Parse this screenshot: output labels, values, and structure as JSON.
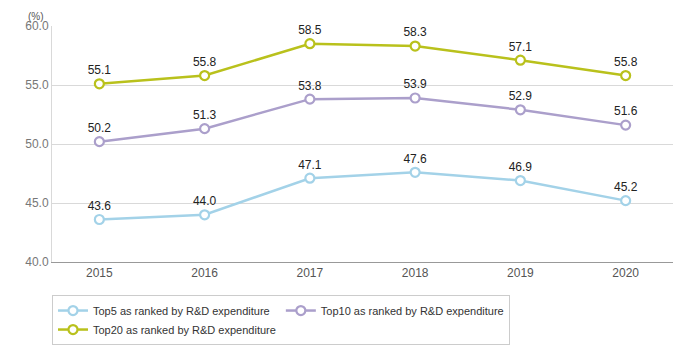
{
  "chart_data": {
    "type": "line",
    "ylabel": "(%)",
    "categories": [
      "2015",
      "2016",
      "2017",
      "2018",
      "2019",
      "2020"
    ],
    "series": [
      {
        "name": "Top5 as ranked by R&D expenditure",
        "color": "#a3d2e8",
        "values": [
          43.6,
          44.0,
          47.1,
          47.6,
          46.9,
          45.2
        ],
        "value_labels": [
          "43.6",
          "44.0",
          "47.1",
          "47.6",
          "46.9",
          "45.2"
        ]
      },
      {
        "name": "Top10 as ranked by R&D expenditure",
        "color": "#ab9fcb",
        "values": [
          50.2,
          51.3,
          53.8,
          53.9,
          52.9,
          51.6
        ],
        "value_labels": [
          "50.2",
          "51.3",
          "53.8",
          "53.9",
          "52.9",
          "51.6"
        ]
      },
      {
        "name": "Top20 as ranked by R&D expenditure",
        "color": "#b9c11c",
        "values": [
          55.1,
          55.8,
          58.5,
          58.3,
          57.1,
          55.8
        ],
        "value_labels": [
          "55.1",
          "55.8",
          "58.5",
          "58.3",
          "57.1",
          "55.8"
        ]
      }
    ],
    "ylim": [
      40,
      60
    ],
    "yticks": [
      {
        "value": 40,
        "label": "40.0"
      },
      {
        "value": 45,
        "label": "45.0"
      },
      {
        "value": 50,
        "label": "50.0"
      },
      {
        "value": 55,
        "label": "55.0"
      },
      {
        "value": 60,
        "label": "60.0"
      }
    ],
    "grid": true,
    "legend": "bottom",
    "data_labels": true,
    "marker": "circle",
    "line_style": "solid"
  }
}
